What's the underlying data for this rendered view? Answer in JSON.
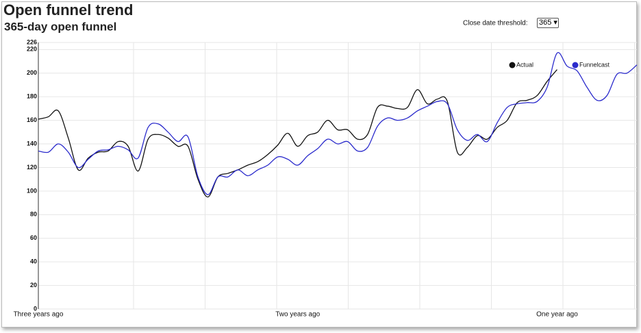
{
  "chart_data": {
    "type": "line",
    "title": "Open funnel trend",
    "subtitle": "365-day open funnel",
    "categories": [
      "Three years ago",
      null,
      null,
      null,
      null,
      null,
      null,
      null,
      null,
      null,
      null,
      null,
      null,
      null,
      null,
      null,
      null,
      null,
      null,
      null,
      null,
      null,
      null,
      null,
      null,
      null,
      "Two years ago",
      null,
      null,
      null,
      null,
      null,
      null,
      null,
      null,
      null,
      null,
      null,
      null,
      null,
      null,
      null,
      null,
      null,
      null,
      null,
      null,
      null,
      null,
      null,
      null,
      null,
      "One year ago",
      null,
      null,
      null,
      null,
      null,
      null,
      null,
      null
    ],
    "series": [
      {
        "name": "Actual",
        "color": "#111111",
        "values": [
          161,
          163,
          168,
          145,
          118,
          128,
          133,
          134,
          142,
          138,
          117,
          144,
          148,
          145,
          138,
          138,
          110,
          95,
          112,
          115,
          118,
          122,
          125,
          131,
          139,
          149,
          138,
          147,
          150,
          160,
          152,
          152,
          144,
          148,
          171,
          172,
          170,
          171,
          186,
          174,
          178,
          176,
          133,
          137,
          147,
          144,
          154,
          160,
          175,
          177,
          181,
          193,
          203,
          null,
          null,
          null,
          null,
          null,
          null,
          null,
          null
        ]
      },
      {
        "name": "Funnelcast",
        "color": "#2b2bcc",
        "values": [
          134,
          133,
          140,
          133,
          120,
          127,
          134,
          135,
          138,
          135,
          128,
          154,
          157,
          150,
          142,
          146,
          112,
          97,
          112,
          112,
          118,
          113,
          118,
          122,
          129,
          127,
          122,
          130,
          136,
          144,
          140,
          142,
          134,
          137,
          155,
          162,
          160,
          162,
          168,
          172,
          176,
          174,
          152,
          143,
          148,
          142,
          158,
          171,
          174,
          175,
          176,
          188,
          217,
          206,
          202,
          188,
          177,
          181,
          199,
          200,
          207
        ]
      }
    ],
    "ylim": [
      0,
      226
    ],
    "yticks": [
      0,
      20,
      40,
      60,
      80,
      100,
      120,
      140,
      160,
      180,
      200,
      220,
      226
    ],
    "grid": true,
    "legend": "top-right"
  },
  "controls": {
    "threshold_label": "Close date threshold:",
    "threshold_value": "365"
  }
}
